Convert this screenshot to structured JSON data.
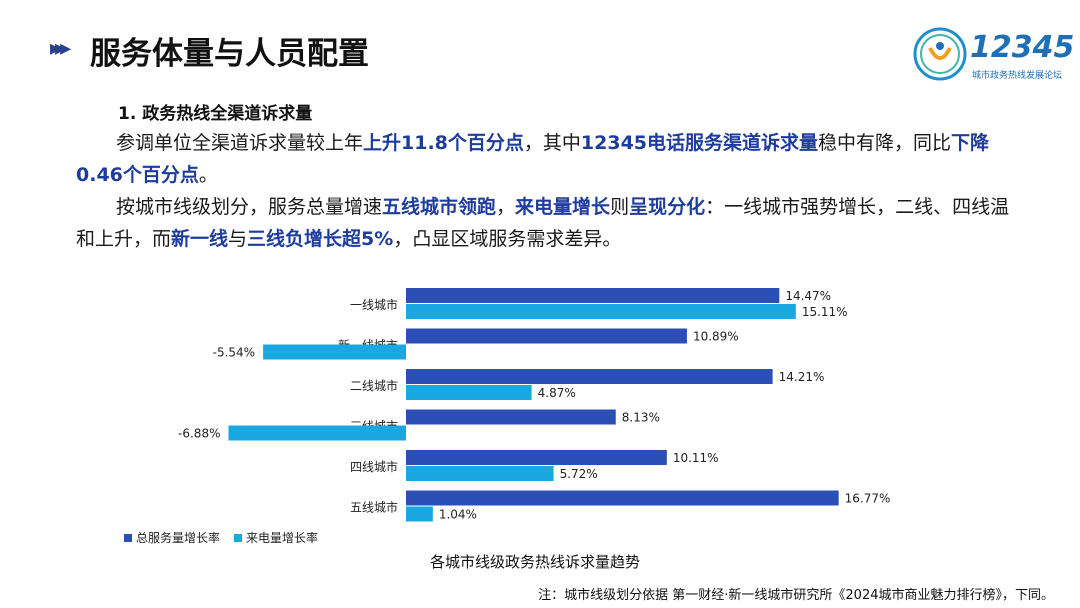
{
  "header": {
    "title": "服务体量与人员配置",
    "logo_text": "12345",
    "logo_sub": "城市政务热线发展论坛"
  },
  "section": {
    "heading": "1. 政务热线全渠道诉求量",
    "p1": [
      {
        "t": "参调单位全渠道诉求量较上年",
        "h": false
      },
      {
        "t": "上升11.8个百分点",
        "h": true
      },
      {
        "t": "，其中",
        "h": false
      },
      {
        "t": "12345电话服务渠道诉求量",
        "h": true
      },
      {
        "t": "稳中有降，同比",
        "h": false
      },
      {
        "t": "下降0.46个百分点",
        "h": true
      },
      {
        "t": "。",
        "h": false
      }
    ],
    "p2": [
      {
        "t": "按城市线级划分，服务总量增速",
        "h": false
      },
      {
        "t": "五线城市领跑",
        "h": true
      },
      {
        "t": "，",
        "h": false
      },
      {
        "t": "来电量增长",
        "h": true
      },
      {
        "t": "则",
        "h": false
      },
      {
        "t": "呈现分化",
        "h": true
      },
      {
        "t": "：一线城市强势增长，二线、四线温和上升，而",
        "h": false
      },
      {
        "t": "新一线",
        "h": true
      },
      {
        "t": "与",
        "h": false
      },
      {
        "t": "三线负增长超5%",
        "h": true
      },
      {
        "t": "，凸显区域服务需求差异。",
        "h": false
      }
    ]
  },
  "chart_data": {
    "type": "bar",
    "orientation": "horizontal",
    "title": "各城市线级政务热线诉求量趋势",
    "categories": [
      "一线城市",
      "新一线城市",
      "二线城市",
      "三线城市",
      "四线城市",
      "五线城市"
    ],
    "series": [
      {
        "name": "总服务量增长率",
        "color": "#2b4fb5",
        "values": [
          14.47,
          10.89,
          14.21,
          8.13,
          10.11,
          16.77
        ]
      },
      {
        "name": "来电量增长率",
        "color": "#19a9e0",
        "values": [
          15.11,
          -5.54,
          4.87,
          -6.88,
          5.72,
          1.04
        ]
      }
    ],
    "value_format": "percent",
    "legend_position": "bottom-left"
  },
  "footnote": "注：城市线级划分依据 第一财经·新一线城市研究所《2024城市商业魅力排行榜》，下同。",
  "colors": {
    "accent": "#1e3c9c",
    "series1": "#2b4fb5",
    "series2": "#19a9e0"
  }
}
